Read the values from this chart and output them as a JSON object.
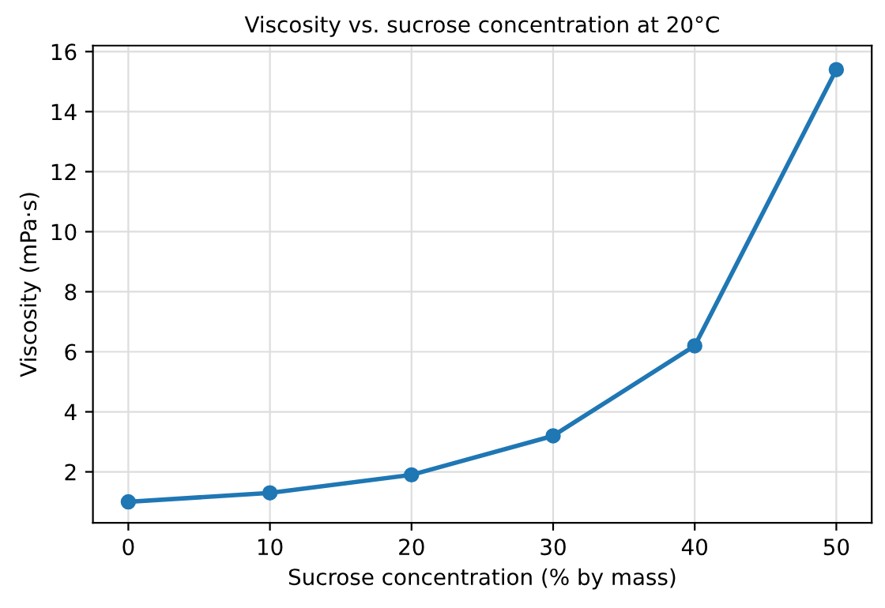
{
  "chart_data": {
    "type": "line",
    "title": "Viscosity vs. sucrose concentration at 20°C",
    "xlabel": "Sucrose concentration (% by mass)",
    "ylabel": "Viscosity (mPa·s)",
    "x": [
      0,
      10,
      20,
      30,
      40,
      50
    ],
    "series": [
      {
        "color": "#1f77b4",
        "values": [
          1.0,
          1.3,
          1.9,
          3.2,
          6.2,
          15.4
        ]
      }
    ],
    "xlim": [
      -2.5,
      52.5
    ],
    "xticks": [
      0,
      10,
      20,
      30,
      40,
      50
    ],
    "ylim": [
      0.3,
      16.2
    ],
    "yticks": [
      2,
      4,
      6,
      8,
      10,
      12,
      14,
      16
    ],
    "grid": true,
    "marker": "circle",
    "line_style": "solid"
  }
}
